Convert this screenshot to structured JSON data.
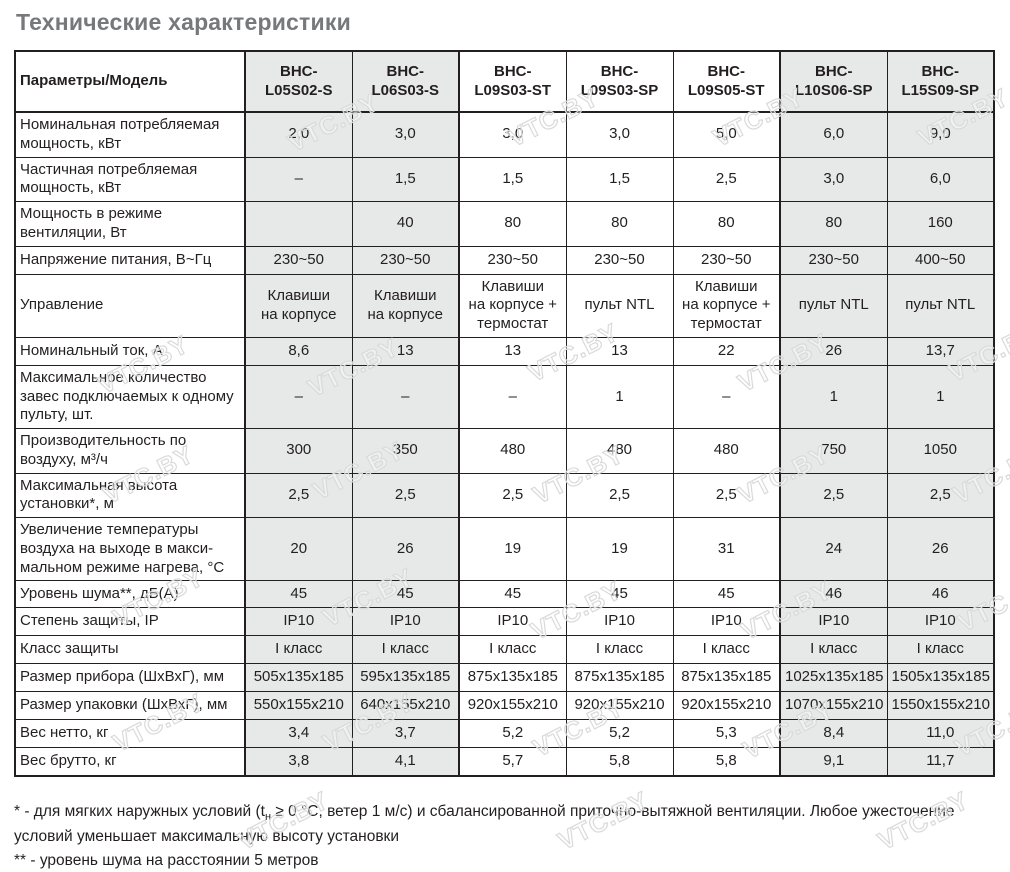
{
  "page_title": "Технические характеристики",
  "watermark_text": "VTC.BY",
  "table": {
    "param_header": "Параметры/Модель",
    "models": [
      {
        "name": "BHC-\nL05S02-S",
        "shaded": true
      },
      {
        "name": "BHC-\nL06S03-S",
        "shaded": true
      },
      {
        "name": "BHC-\nL09S03-ST",
        "shaded": false
      },
      {
        "name": "BHC-\nL09S03-SP",
        "shaded": false
      },
      {
        "name": "BHC-\nL09S05-ST",
        "shaded": false
      },
      {
        "name": "BHC-\nL10S06-SP",
        "shaded": true
      },
      {
        "name": "BHC-\nL15S09-SP",
        "shaded": true
      }
    ],
    "rows": [
      {
        "label": "Номинальная потребляемая\nмощность, кВт",
        "values": [
          "2,0",
          "3,0",
          "3,0",
          "3,0",
          "5,0",
          "6,0",
          "9,0"
        ]
      },
      {
        "label": "Частичная потребляемая\nмощность, кВт",
        "values": [
          "–",
          "1,5",
          "1,5",
          "1,5",
          "2,5",
          "3,0",
          "6,0"
        ]
      },
      {
        "label": "Мощность в режиме\nвентиляции, Вт",
        "values": [
          "",
          "40",
          "80",
          "80",
          "80",
          "80",
          "160"
        ]
      },
      {
        "label": "Напряжение питания, В~Гц",
        "values": [
          "230~50",
          "230~50",
          "230~50",
          "230~50",
          "230~50",
          "230~50",
          "400~50"
        ]
      },
      {
        "label": "Управление",
        "values": [
          "Клавиши\nна корпусе",
          "Клавиши\nна корпусе",
          "Клавиши\nна корпусе +\nтермостат",
          "пульт NTL",
          "Клавиши\nна корпусе +\nтермостат",
          "пульт NTL",
          "пульт NTL"
        ]
      },
      {
        "label": "Номинальный ток, А",
        "values": [
          "8,6",
          "13",
          "13",
          "13",
          "22",
          "26",
          "13,7"
        ]
      },
      {
        "label": "Максимальное количество\nзавес подключаемых к одному\nпульту, шт.",
        "values": [
          "–",
          "–",
          "–",
          "1",
          "–",
          "1",
          "1"
        ]
      },
      {
        "label": "Производительность по\nвоздуху, м³/ч",
        "values": [
          "300",
          "350",
          "480",
          "480",
          "480",
          "750",
          "1050"
        ]
      },
      {
        "label": "Максимальная высота\nустановки*, м",
        "values": [
          "2,5",
          "2,5",
          "2,5",
          "2,5",
          "2,5",
          "2,5",
          "2,5"
        ]
      },
      {
        "label": "Увеличение температуры\nвоздуха на выходе в макси-\nмальном режиме нагрева, °С",
        "values": [
          "20",
          "26",
          "19",
          "19",
          "31",
          "24",
          "26"
        ]
      },
      {
        "label": "Уровень шума**, дБ(А)",
        "values": [
          "45",
          "45",
          "45",
          "45",
          "45",
          "46",
          "46"
        ]
      },
      {
        "label": "Степень защиты, IP",
        "values": [
          "IP10",
          "IP10",
          "IP10",
          "IP10",
          "IP10",
          "IP10",
          "IP10"
        ]
      },
      {
        "label": "Класс защиты",
        "values": [
          "I класс",
          "I класс",
          "I класс",
          "I класс",
          "I класс",
          "I класс",
          "I класс"
        ]
      },
      {
        "label": "Размер прибора (ШхВхГ), мм",
        "values": [
          "505х135х185",
          "595х135х185",
          "875х135х185",
          "875х135х185",
          "875х135х185",
          "1025х135х185",
          "1505х135х185"
        ]
      },
      {
        "label": "Размер упаковки (ШхВхГ), мм",
        "values": [
          "550х155х210",
          "640х155х210",
          "920х155х210",
          "920х155х210",
          "920х155х210",
          "1070х155х210",
          "1550х155х210"
        ]
      },
      {
        "label": "Вес нетто, кг",
        "values": [
          "3,4",
          "3,7",
          "5,2",
          "5,2",
          "5,3",
          "8,4",
          "11,0"
        ]
      },
      {
        "label": "Вес брутто, кг",
        "values": [
          "3,8",
          "4,1",
          "5,7",
          "5,8",
          "5,8",
          "9,1",
          "11,7"
        ]
      }
    ]
  },
  "footnotes": {
    "note1_pre": "* - для мягких наружных условий (t",
    "note1_sub": "н",
    "note1_post": " ≥ 0 °С, ветер 1 м/с) и сбалансированной приточно-вытяжной вентиляции. Любое ужесточение условий уменьшает максимальную высоту установки",
    "note2": "** - уровень шума на расстоянии 5 метров"
  },
  "colors": {
    "shaded_cell": "#e7e8e8",
    "border": "#231f20",
    "title": "#77787b",
    "text": "#231f20"
  }
}
